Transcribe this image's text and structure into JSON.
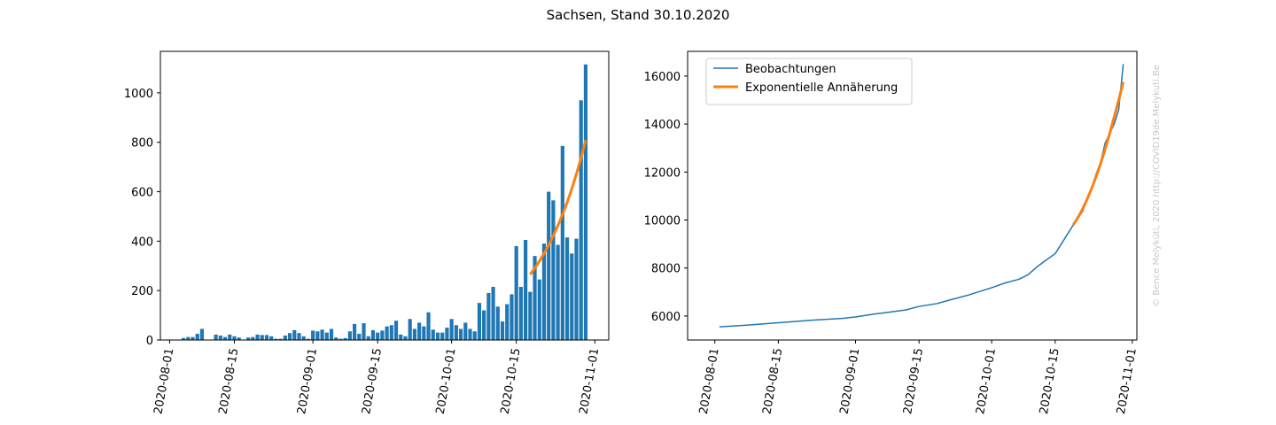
{
  "title": "Sachsen, Stand 30.10.2020",
  "watermark": "© Bence Melykúti, 2020  http://COVID19de.Melykuti.Be",
  "chart_data": [
    {
      "type": "bar",
      "xlim": [
        "2020-07-30",
        "2020-11-04"
      ],
      "xticks": [
        "2020-08-01",
        "2020-08-15",
        "2020-09-01",
        "2020-09-15",
        "2020-10-01",
        "2020-10-15",
        "2020-11-01"
      ],
      "ylim": [
        0,
        1168
      ],
      "yticks": [
        0,
        200,
        400,
        600,
        800,
        1000
      ],
      "series": [
        {
          "type": "bar",
          "color": "#1f77b4",
          "x": [
            "2020-08-04",
            "2020-08-05",
            "2020-08-06",
            "2020-08-07",
            "2020-08-08",
            "2020-08-09",
            "2020-08-10",
            "2020-08-11",
            "2020-08-12",
            "2020-08-13",
            "2020-08-14",
            "2020-08-15",
            "2020-08-16",
            "2020-08-17",
            "2020-08-18",
            "2020-08-19",
            "2020-08-20",
            "2020-08-21",
            "2020-08-22",
            "2020-08-23",
            "2020-08-24",
            "2020-08-25",
            "2020-08-26",
            "2020-08-27",
            "2020-08-28",
            "2020-08-29",
            "2020-08-30",
            "2020-08-31",
            "2020-09-01",
            "2020-09-02",
            "2020-09-03",
            "2020-09-04",
            "2020-09-05",
            "2020-09-06",
            "2020-09-07",
            "2020-09-08",
            "2020-09-09",
            "2020-09-10",
            "2020-09-11",
            "2020-09-12",
            "2020-09-13",
            "2020-09-14",
            "2020-09-15",
            "2020-09-16",
            "2020-09-17",
            "2020-09-18",
            "2020-09-19",
            "2020-09-20",
            "2020-09-21",
            "2020-09-22",
            "2020-09-23",
            "2020-09-24",
            "2020-09-25",
            "2020-09-26",
            "2020-09-27",
            "2020-09-28",
            "2020-09-29",
            "2020-09-30",
            "2020-10-01",
            "2020-10-02",
            "2020-10-03",
            "2020-10-04",
            "2020-10-05",
            "2020-10-06",
            "2020-10-07",
            "2020-10-08",
            "2020-10-09",
            "2020-10-10",
            "2020-10-11",
            "2020-10-12",
            "2020-10-13",
            "2020-10-14",
            "2020-10-15",
            "2020-10-16",
            "2020-10-17",
            "2020-10-18",
            "2020-10-19",
            "2020-10-20",
            "2020-10-21",
            "2020-10-22",
            "2020-10-23",
            "2020-10-24",
            "2020-10-25",
            "2020-10-26",
            "2020-10-27",
            "2020-10-28",
            "2020-10-29",
            "2020-10-30"
          ],
          "values": [
            8,
            12,
            12,
            25,
            45,
            0,
            0,
            22,
            18,
            12,
            22,
            15,
            10,
            0,
            10,
            12,
            22,
            20,
            20,
            15,
            5,
            5,
            18,
            28,
            40,
            28,
            15,
            5,
            38,
            35,
            42,
            30,
            45,
            10,
            5,
            8,
            35,
            65,
            25,
            68,
            15,
            40,
            30,
            38,
            55,
            60,
            78,
            22,
            15,
            85,
            45,
            70,
            55,
            112,
            42,
            30,
            30,
            50,
            85,
            60,
            45,
            70,
            45,
            35,
            150,
            120,
            190,
            215,
            135,
            75,
            145,
            185,
            380,
            215,
            405,
            195,
            340,
            245,
            390,
            600,
            565,
            385,
            785,
            415,
            350,
            410,
            970,
            1115
          ]
        },
        {
          "type": "line",
          "color": "#ff7f0e",
          "x": [
            "2020-10-18",
            "2020-10-19",
            "2020-10-20",
            "2020-10-21",
            "2020-10-22",
            "2020-10-23",
            "2020-10-24",
            "2020-10-25",
            "2020-10-26",
            "2020-10-27",
            "2020-10-28",
            "2020-10-29",
            "2020-10-30"
          ],
          "values": [
            265,
            291,
            319,
            350,
            384,
            422,
            463,
            508,
            557,
            612,
            671,
            737,
            809
          ]
        }
      ]
    },
    {
      "type": "line",
      "xlim": [
        "2020-07-26",
        "2020-11-02"
      ],
      "xticks": [
        "2020-08-01",
        "2020-08-15",
        "2020-09-01",
        "2020-09-15",
        "2020-10-01",
        "2020-10-15",
        "2020-11-01"
      ],
      "ylim": [
        5000,
        17030
      ],
      "yticks": [
        6000,
        8000,
        10000,
        12000,
        14000,
        16000
      ],
      "legend": "upper left",
      "series": [
        {
          "type": "line",
          "name": "Beobachtungen",
          "color": "#1f77b4",
          "x": [
            "2020-08-02",
            "2020-08-08",
            "2020-08-15",
            "2020-08-22",
            "2020-08-29",
            "2020-09-01",
            "2020-09-05",
            "2020-09-08",
            "2020-09-12",
            "2020-09-15",
            "2020-09-19",
            "2020-09-22",
            "2020-09-26",
            "2020-09-29",
            "2020-10-01",
            "2020-10-04",
            "2020-10-07",
            "2020-10-09",
            "2020-10-11",
            "2020-10-13",
            "2020-10-15",
            "2020-10-17",
            "2020-10-19",
            "2020-10-21",
            "2020-10-23",
            "2020-10-24",
            "2020-10-25",
            "2020-10-26",
            "2020-10-28",
            "2020-10-29",
            "2020-10-30"
          ],
          "values": [
            5550,
            5620,
            5720,
            5820,
            5900,
            5960,
            6080,
            6150,
            6250,
            6400,
            6520,
            6680,
            6880,
            7060,
            7180,
            7380,
            7530,
            7720,
            8050,
            8330,
            8600,
            9200,
            9800,
            10350,
            11300,
            11900,
            12400,
            13200,
            14000,
            14600,
            16500
          ]
        },
        {
          "type": "line",
          "name": "Exponentielle Annäherung",
          "color": "#ff7f0e",
          "x": [
            "2020-10-19",
            "2020-10-20",
            "2020-10-21",
            "2020-10-22",
            "2020-10-23",
            "2020-10-24",
            "2020-10-25",
            "2020-10-26",
            "2020-10-27",
            "2020-10-28",
            "2020-10-29",
            "2020-10-30"
          ],
          "values": [
            9800,
            10100,
            10450,
            10850,
            11300,
            11800,
            12350,
            12950,
            13600,
            14300,
            15000,
            15750
          ]
        }
      ]
    }
  ]
}
